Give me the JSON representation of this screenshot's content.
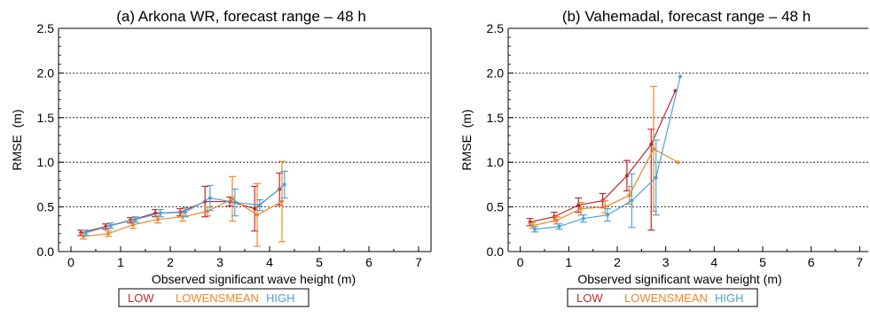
{
  "colors": {
    "LOW": "#c0282d",
    "LOWENSMEAN": "#f0872a",
    "HIGH": "#4fa3d3"
  },
  "chart_data": [
    {
      "type": "line",
      "title": "(a) Arkona WR, forecast range – 48 h",
      "xlabel": "Observed significant wave height (m)",
      "ylabel": "RMSE  (m)",
      "xlim": [
        -0.25,
        7.25
      ],
      "ylim": [
        0,
        2.5
      ],
      "xticks": [
        0,
        1,
        2,
        3,
        4,
        5,
        6,
        7
      ],
      "yticks": [
        0.0,
        0.5,
        1.0,
        1.5,
        2.0,
        2.5
      ],
      "ytick_labels": [
        "0.0",
        "0.5",
        "1.0",
        "1.5",
        "2.0",
        "2.5"
      ],
      "grid_y": [
        0.5,
        1.0,
        1.5,
        2.0
      ],
      "legend": {
        "position": "bottom",
        "entries": [
          "LOW",
          "LOWENSMEAN",
          "HIGH"
        ]
      },
      "series": [
        {
          "name": "LOW",
          "x": [
            0.2,
            0.7,
            1.2,
            1.7,
            2.2,
            2.7,
            3.2,
            3.7,
            4.2
          ],
          "y": [
            0.21,
            0.28,
            0.35,
            0.43,
            0.44,
            0.56,
            0.56,
            0.48,
            0.7
          ],
          "err": [
            0.03,
            0.03,
            0.03,
            0.04,
            0.04,
            0.17,
            0.05,
            0.25,
            0.18
          ]
        },
        {
          "name": "LOWENSMEAN",
          "x": [
            0.25,
            0.75,
            1.25,
            1.75,
            2.25,
            2.75,
            3.25,
            3.75,
            4.25
          ],
          "y": [
            0.17,
            0.2,
            0.3,
            0.36,
            0.39,
            0.45,
            0.59,
            0.41,
            0.56
          ],
          "err": [
            0.03,
            0.03,
            0.04,
            0.04,
            0.05,
            0.05,
            0.25,
            0.35,
            0.45
          ]
        },
        {
          "name": "HIGH",
          "x": [
            0.3,
            0.8,
            1.3,
            1.8,
            2.3,
            2.8,
            3.3,
            3.8,
            4.3
          ],
          "y": [
            0.21,
            0.29,
            0.36,
            0.43,
            0.44,
            0.6,
            0.55,
            0.52,
            0.75
          ],
          "err": [
            0.03,
            0.03,
            0.03,
            0.04,
            0.05,
            0.14,
            0.15,
            0.06,
            0.15
          ]
        }
      ]
    },
    {
      "type": "line",
      "title": "(b) Vahemadal, forecast range – 48 h",
      "xlabel": "Observed significant wave height (m)",
      "ylabel": "RMSE  (m)",
      "xlim": [
        -0.25,
        7.25
      ],
      "ylim": [
        0,
        2.5
      ],
      "xticks": [
        0,
        1,
        2,
        3,
        4,
        5,
        6,
        7
      ],
      "yticks": [
        0.0,
        0.5,
        1.0,
        1.5,
        2.0,
        2.5
      ],
      "ytick_labels": [
        "0.0",
        "0.5",
        "1.0",
        "1.5",
        "2.0",
        "2.5"
      ],
      "grid_y": [
        0.5,
        1.0,
        1.5,
        2.0
      ],
      "legend": {
        "position": "bottom",
        "entries": [
          "LOW",
          "LOWENSMEAN",
          "HIGH"
        ]
      },
      "series": [
        {
          "name": "LOW",
          "x": [
            0.2,
            0.7,
            1.2,
            1.7,
            2.2,
            2.7,
            3.2
          ],
          "y": [
            0.33,
            0.39,
            0.52,
            0.57,
            0.85,
            1.2,
            1.8
          ],
          "err": [
            0.04,
            0.05,
            0.08,
            0.08,
            0.17,
            0.17,
            null
          ],
          "err_low": [
            null,
            null,
            null,
            null,
            null,
            0.96,
            null
          ]
        },
        {
          "name": "LOWENSMEAN",
          "x": [
            0.25,
            0.75,
            1.25,
            1.75,
            2.25,
            2.75,
            3.25
          ],
          "y": [
            0.29,
            0.35,
            0.48,
            0.5,
            0.63,
            1.15,
            1.0
          ],
          "err": [
            0.03,
            0.04,
            0.07,
            0.07,
            0.1,
            0.7,
            null
          ]
        },
        {
          "name": "HIGH",
          "x": [
            0.3,
            0.8,
            1.3,
            1.8,
            2.3,
            2.8,
            3.3
          ],
          "y": [
            0.25,
            0.28,
            0.37,
            0.41,
            0.57,
            0.83,
            1.96
          ],
          "err": [
            0.03,
            0.03,
            0.04,
            0.07,
            0.3,
            0.42,
            null
          ]
        }
      ]
    }
  ]
}
